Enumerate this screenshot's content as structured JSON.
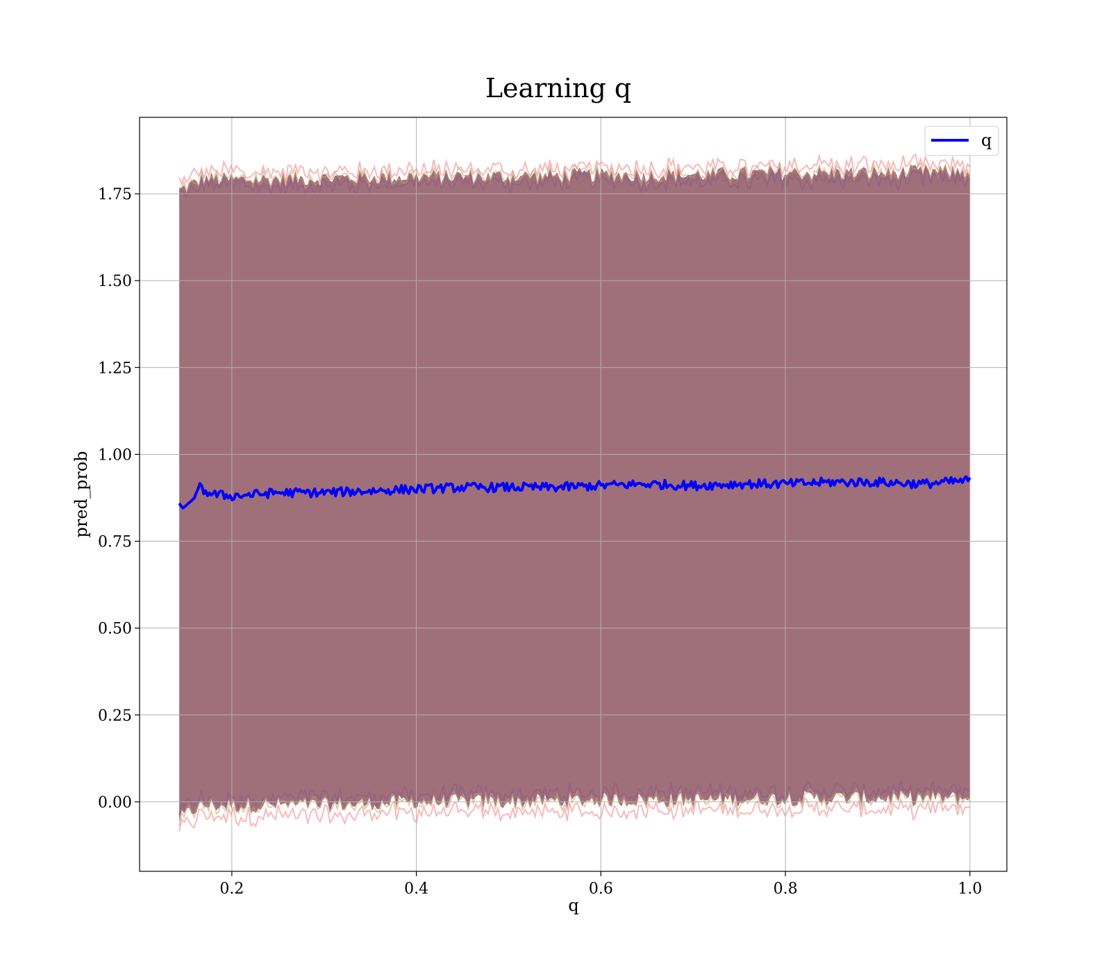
{
  "chart_data": {
    "type": "line",
    "title": "Learning q",
    "xlabel": "q",
    "ylabel": "pred_prob",
    "xlim": [
      0.1,
      1.04
    ],
    "ylim": [
      -0.2,
      1.97
    ],
    "xticks": [
      0.2,
      0.4,
      0.6,
      0.8,
      1.0
    ],
    "xtick_labels": [
      "0.2",
      "0.4",
      "0.6",
      "0.8",
      "1.0"
    ],
    "yticks": [
      0.0,
      0.25,
      0.5,
      0.75,
      1.0,
      1.25,
      1.5,
      1.75
    ],
    "ytick_labels": [
      "0.00",
      "0.25",
      "0.50",
      "0.75",
      "1.00",
      "1.25",
      "1.50",
      "1.75"
    ],
    "grid": true,
    "legend": {
      "position": "top-right",
      "entries": [
        "q"
      ]
    },
    "series": [
      {
        "name": "q",
        "kind": "line",
        "color": "#0000ff",
        "x": [
          0.143,
          0.148,
          0.155,
          0.16,
          0.165,
          0.17,
          0.18,
          0.2,
          0.25,
          0.3,
          0.35,
          0.4,
          0.45,
          0.5,
          0.55,
          0.6,
          0.65,
          0.7,
          0.75,
          0.8,
          0.85,
          0.9,
          0.95,
          1.0
        ],
        "y": [
          0.86,
          0.845,
          0.86,
          0.88,
          0.905,
          0.895,
          0.885,
          0.88,
          0.89,
          0.89,
          0.895,
          0.9,
          0.905,
          0.905,
          0.905,
          0.91,
          0.915,
          0.91,
          0.915,
          0.915,
          0.92,
          0.92,
          0.915,
          0.925
        ]
      }
    ],
    "bands": [
      {
        "kind": "shaded-band",
        "color": "#a0707a",
        "x": [
          0.143,
          0.16,
          0.17,
          0.2,
          0.3,
          0.4,
          0.5,
          0.6,
          0.7,
          0.8,
          0.9,
          1.0
        ],
        "lower": [
          -0.05,
          -0.02,
          -0.01,
          -0.01,
          -0.01,
          0.0,
          0.0,
          0.005,
          0.005,
          0.01,
          0.01,
          0.01
        ],
        "upper": [
          1.76,
          1.78,
          1.795,
          1.79,
          1.795,
          1.8,
          1.8,
          1.805,
          1.805,
          1.81,
          1.81,
          1.815
        ]
      }
    ],
    "colors": {
      "band_fill": "#a0707a",
      "band_edge_red": "#f08080",
      "band_edge_orange": "#c8a070",
      "band_edge_purple": "#8a5a8a",
      "line": "#0000ff",
      "grid": "#b0b0b0"
    }
  }
}
